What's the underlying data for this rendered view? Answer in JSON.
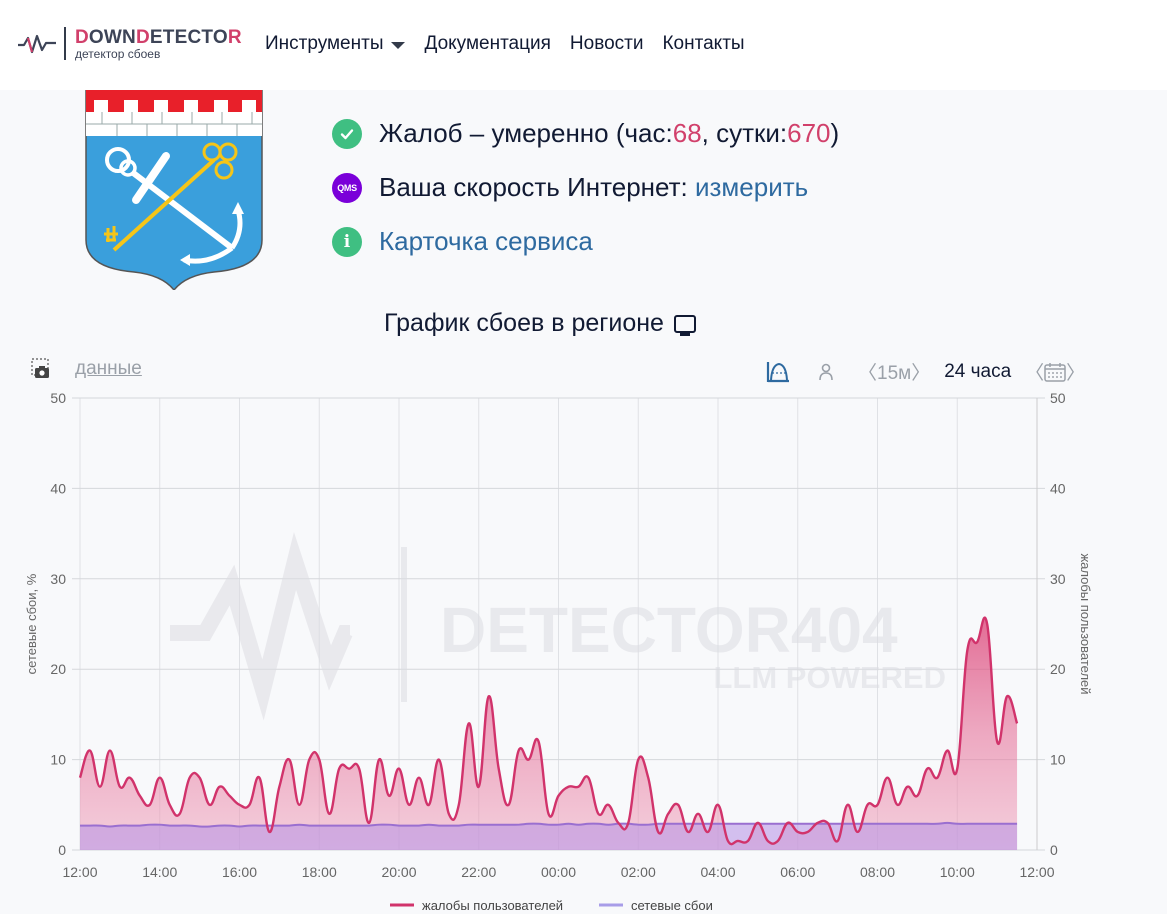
{
  "header": {
    "logo_title_parts": [
      "D",
      "OWN",
      "D",
      "ETECTO",
      "R"
    ],
    "logo_subtitle": "детектор сбоев",
    "nav": [
      {
        "label": "Инструменты",
        "has_dropdown": true
      },
      {
        "label": "Документация"
      },
      {
        "label": "Новости"
      },
      {
        "label": "Контакты"
      }
    ]
  },
  "status": {
    "complaints_prefix": "Жалоб – умеренно (час: ",
    "complaints_hour": "68",
    "complaints_mid": ", сутки: ",
    "complaints_day": "670",
    "complaints_suffix": ")",
    "speed_label": "Ваша скорость Интернет: ",
    "speed_link": "измерить",
    "qms_badge": "QMS",
    "service_card_link": "Карточка сервиса",
    "info_glyph": "i"
  },
  "chart_section": {
    "title": "График сбоев в регионе",
    "data_link": "данные",
    "interval_label": "〈15м〉",
    "period_label": "24 часа",
    "prev_glyph": "〈",
    "next_glyph": "〉"
  },
  "colors": {
    "complaints": "#d1336b",
    "network": "#a07cd8",
    "accent_red": "#d1406b",
    "link_blue": "#2e6aa0",
    "check_green": "#3fbf82",
    "qms_purple": "#7a00d9"
  },
  "watermark": {
    "title": "DETECTOR404",
    "subtitle": "LLM POWERED"
  },
  "chart_data": {
    "type": "area",
    "title": "График сбоев в регионе",
    "xlabel": "",
    "ylabel_left": "сетевые сбои, %",
    "ylabel_right": "жалобы пользователей",
    "ylim": [
      0,
      50
    ],
    "yticks": [
      0,
      10,
      20,
      30,
      40,
      50
    ],
    "xticks": [
      "12:00",
      "14:00",
      "16:00",
      "18:00",
      "20:00",
      "22:00",
      "00:00",
      "02:00",
      "04:00",
      "06:00",
      "08:00",
      "10:00",
      "12:00"
    ],
    "x_interval": "15m",
    "grid": true,
    "legend_position": "bottom",
    "series": [
      {
        "name": "жалобы пользователей",
        "axis": "right",
        "values": [
          8,
          11,
          7,
          11,
          7,
          8,
          6,
          5,
          8,
          5,
          4,
          8,
          8,
          5,
          7,
          6,
          5,
          5,
          8,
          2,
          7,
          10,
          5,
          10,
          10,
          4,
          9,
          9,
          9,
          3,
          10,
          6,
          9,
          5,
          8,
          5,
          10,
          4,
          5,
          14,
          7,
          17,
          9,
          5,
          11,
          10,
          12,
          4,
          6,
          7,
          7,
          8,
          4,
          5,
          3,
          3,
          10,
          8,
          2,
          4,
          5,
          2,
          4,
          2,
          5,
          1,
          1,
          1,
          3,
          1,
          1,
          3,
          2,
          2,
          3,
          3,
          1,
          5,
          2,
          5,
          5,
          8,
          5,
          7,
          6,
          9,
          8,
          11,
          9,
          22,
          23,
          25,
          12,
          17,
          14
        ]
      },
      {
        "name": "сетевые сбои",
        "axis": "left",
        "values": [
          2.7,
          2.7,
          2.7,
          2.6,
          2.7,
          2.7,
          2.7,
          2.8,
          2.8,
          2.7,
          2.7,
          2.7,
          2.6,
          2.6,
          2.7,
          2.7,
          2.6,
          2.7,
          2.7,
          2.7,
          2.7,
          2.7,
          2.8,
          2.7,
          2.7,
          2.7,
          2.7,
          2.7,
          2.7,
          2.7,
          2.8,
          2.8,
          2.7,
          2.7,
          2.7,
          2.8,
          2.7,
          2.7,
          2.7,
          2.8,
          2.8,
          2.8,
          2.8,
          2.8,
          2.8,
          2.9,
          2.9,
          2.8,
          2.8,
          2.9,
          2.8,
          2.9,
          2.9,
          2.8,
          2.9,
          2.9,
          2.8,
          2.8,
          2.9,
          2.9,
          2.9,
          2.9,
          2.9,
          2.9,
          2.9,
          2.9,
          2.9,
          2.9,
          2.9,
          2.9,
          2.9,
          2.9,
          2.9,
          2.9,
          2.9,
          2.9,
          2.9,
          2.9,
          2.9,
          2.9,
          2.9,
          2.9,
          2.9,
          2.9,
          2.9,
          2.9,
          2.9,
          3.0,
          2.9,
          2.9,
          2.9,
          2.9,
          2.9,
          2.9,
          2.9
        ]
      }
    ]
  }
}
